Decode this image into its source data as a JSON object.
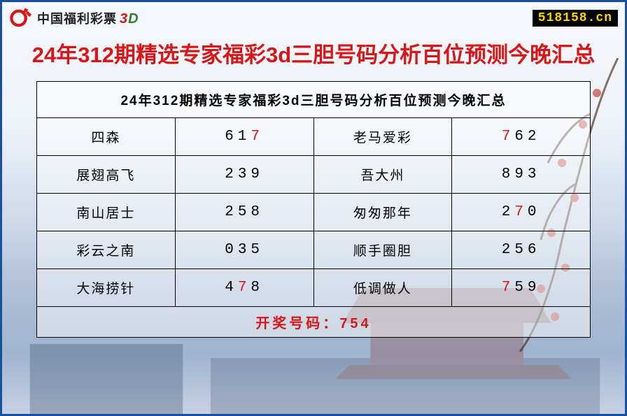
{
  "colors": {
    "border": "#1a4fa0",
    "accent_red": "#d71618",
    "accent_green": "#2e7d32",
    "badge_bg": "#000000",
    "badge_fg": "#ffd400",
    "cell_border": "#000000",
    "text": "#222222"
  },
  "header": {
    "logo_name": "中国福利彩票",
    "logo_suffix_3": "3",
    "logo_suffix_d": "D",
    "site_badge": "518158.cn"
  },
  "title": "24年312期精选专家福彩3d三胆号码分析百位预测今晚汇总",
  "table": {
    "caption": "24年312期精选专家福彩3d三胆号码分析百位预测今晚汇总",
    "highlight_digit": "7",
    "rows": [
      {
        "name_a": "四森",
        "num_a": "617",
        "name_b": "老马爱彩",
        "num_b": "762"
      },
      {
        "name_a": "展翅高飞",
        "num_a": "239",
        "name_b": "吾大州",
        "num_b": "893"
      },
      {
        "name_a": "南山居士",
        "num_a": "258",
        "name_b": "匆匆那年",
        "num_b": "270"
      },
      {
        "name_a": "彩云之南",
        "num_a": "035",
        "name_b": "顺手圈胆",
        "num_b": "256"
      },
      {
        "name_a": "大海捞针",
        "num_a": "478",
        "name_b": "低调做人",
        "num_b": "759"
      }
    ],
    "footer_label": "开奖号码：",
    "footer_value": "754"
  }
}
